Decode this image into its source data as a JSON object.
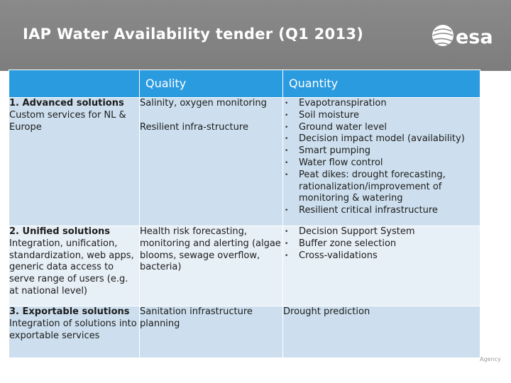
{
  "slide": {
    "title": "IAP Water Availability tender (Q1 2013)",
    "logo_text": "esa",
    "agency_text": "Agency"
  },
  "table": {
    "headers": [
      "",
      "Quality",
      "Quantity"
    ],
    "rows": [
      {
        "heading": "1. Advanced solutions",
        "subtext": "Custom services for NL & Europe",
        "quality": [
          "Salinity, oxygen monitoring",
          "Resilient infra-structure"
        ],
        "quantity": [
          "Evapotranspiration",
          "Soil moisture",
          "Ground water level",
          "Decision impact model (availability)",
          "Smart pumping",
          "Water flow control",
          "Peat dikes: drought forecasting, rationalization/improvement of monitoring & watering",
          "Resilient critical infrastructure"
        ]
      },
      {
        "heading": "2. Unified solutions",
        "subtext": "Integration, unification, standardization, web apps, generic data access to serve range of users (e.g. at national level)",
        "quality": [
          "Health risk forecasting, monitoring and alerting (algae blooms, sewage overflow, bacteria)"
        ],
        "quantity": [
          "Decision Support System",
          "Buffer zone selection",
          "Cross-validations"
        ]
      },
      {
        "heading": "3. Exportable solutions",
        "subtext": "Integration of solutions into exportable services",
        "quality": [
          "Sanitation infrastructure planning"
        ],
        "quantity_text": "Drought prediction"
      }
    ]
  },
  "colors": {
    "header_band": "#808080",
    "table_header": "#2b9be0",
    "row_dark": "#cddfee",
    "row_light": "#e7eff7"
  }
}
